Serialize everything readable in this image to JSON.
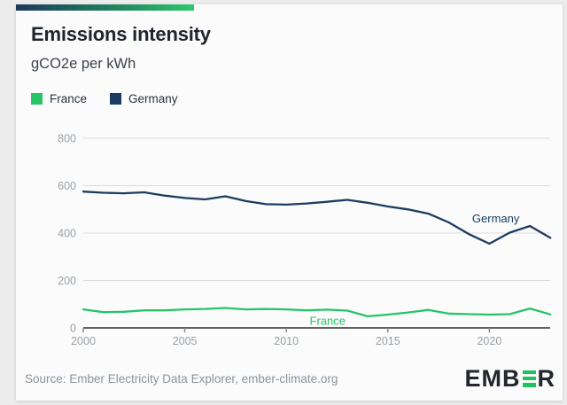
{
  "header": {
    "title": "Emissions intensity",
    "subtitle": "gCO2e per kWh",
    "accent_colors": [
      "#1c3a5e",
      "#2fc76d"
    ]
  },
  "legend": [
    {
      "label": "France",
      "color": "#27c46a"
    },
    {
      "label": "Germany",
      "color": "#1d3c61"
    }
  ],
  "chart_data": {
    "type": "line",
    "title": "Emissions intensity",
    "ylabel": "gCO2e per kWh",
    "ylim": [
      0,
      800
    ],
    "yticks": [
      0,
      200,
      400,
      600,
      800
    ],
    "xticks": [
      2000,
      2005,
      2010,
      2015,
      2020
    ],
    "grid": true,
    "x": [
      2000,
      2001,
      2002,
      2003,
      2004,
      2005,
      2006,
      2007,
      2008,
      2009,
      2010,
      2011,
      2012,
      2013,
      2014,
      2015,
      2016,
      2017,
      2018,
      2019,
      2020,
      2021,
      2022,
      2023
    ],
    "series": [
      {
        "name": "France",
        "color": "#27c46a",
        "values": [
          78,
          66,
          68,
          74,
          74,
          78,
          80,
          84,
          78,
          80,
          78,
          74,
          77,
          73,
          49,
          56,
          65,
          76,
          60,
          58,
          56,
          58,
          82,
          57
        ]
      },
      {
        "name": "Germany",
        "color": "#1d3c61",
        "values": [
          575,
          570,
          568,
          572,
          558,
          548,
          542,
          555,
          535,
          522,
          520,
          525,
          532,
          540,
          528,
          512,
          500,
          482,
          445,
          395,
          355,
          402,
          430,
          380
        ]
      }
    ],
    "annotations": [
      {
        "text": "Germany",
        "x": 2019.15,
        "y": 445,
        "color": "#1d3c61"
      },
      {
        "text": "France",
        "x": 2011.15,
        "y": 14,
        "color": "#27c46a"
      }
    ],
    "axis_color": "#2f2f2f",
    "grid_color": "#dcdcdc",
    "tick_label_color": "#9b9fa6"
  },
  "footer": {
    "source": "Source: Ember Electricity Data Explorer, ember-climate.org",
    "logo": {
      "name": "EMBER",
      "prefix": "EMB",
      "suffix": "R"
    }
  }
}
